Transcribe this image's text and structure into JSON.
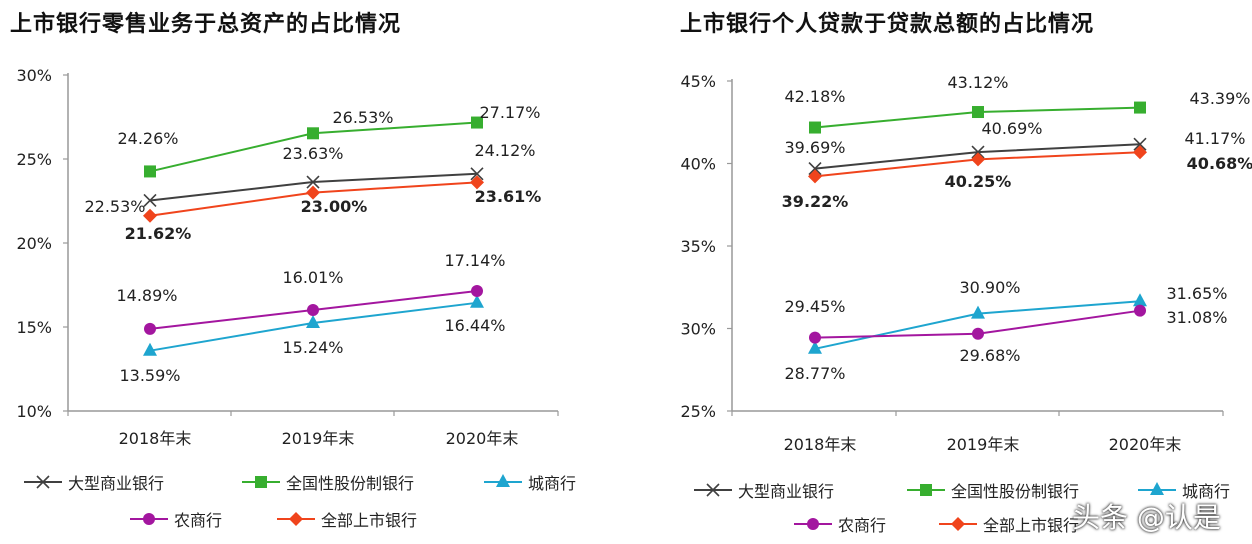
{
  "watermark": "头条 @认是",
  "chart_data": [
    {
      "type": "line",
      "title": "上市银行零售业务于总资产的占比情况",
      "categories": [
        "2018年末",
        "2019年末",
        "2020年末"
      ],
      "ylim": [
        10,
        30
      ],
      "yticks": [
        10,
        15,
        20,
        25,
        30
      ],
      "ytick_labels": [
        "10%",
        "15%",
        "20%",
        "25%",
        "30%"
      ],
      "xlabel": "",
      "ylabel": "",
      "legend_position": "bottom",
      "series": [
        {
          "name": "大型商业银行",
          "color": "#404040",
          "marker": "x",
          "values": [
            22.53,
            23.63,
            24.12
          ],
          "labels": [
            "22.53%",
            "23.63%",
            "24.12%"
          ],
          "bold": false
        },
        {
          "name": "全国性股份制银行",
          "color": "#37ae2f",
          "marker": "square",
          "values": [
            24.26,
            26.53,
            27.17
          ],
          "labels": [
            "24.26%",
            "26.53%",
            "27.17%"
          ],
          "bold": false
        },
        {
          "name": "城商行",
          "color": "#1ea5cf",
          "marker": "triangle",
          "values": [
            13.59,
            15.24,
            16.44
          ],
          "labels": [
            "13.59%",
            "15.24%",
            "16.44%"
          ],
          "bold": false
        },
        {
          "name": "农商行",
          "color": "#a3169f",
          "marker": "circle",
          "values": [
            14.89,
            16.01,
            17.14
          ],
          "labels": [
            "14.89%",
            "16.01%",
            "17.14%"
          ],
          "bold": false
        },
        {
          "name": "全部上市银行",
          "color": "#f0441c",
          "marker": "diamond",
          "values": [
            21.62,
            23.0,
            23.61
          ],
          "labels": [
            "21.62%",
            "23.00%",
            "23.61%"
          ],
          "bold": true
        }
      ]
    },
    {
      "type": "line",
      "title": "上市银行个人贷款于贷款总额的占比情况",
      "categories": [
        "2018年末",
        "2019年末",
        "2020年末"
      ],
      "ylim": [
        25,
        45
      ],
      "yticks": [
        25,
        30,
        35,
        40,
        45
      ],
      "ytick_labels": [
        "25%",
        "30%",
        "35%",
        "40%",
        "45%"
      ],
      "xlabel": "",
      "ylabel": "",
      "legend_position": "bottom",
      "series": [
        {
          "name": "大型商业银行",
          "color": "#404040",
          "marker": "x",
          "values": [
            39.69,
            40.69,
            41.17
          ],
          "labels": [
            "39.69%",
            "40.69%",
            "41.17%"
          ],
          "bold": false
        },
        {
          "name": "全国性股份制银行",
          "color": "#37ae2f",
          "marker": "square",
          "values": [
            42.18,
            43.12,
            43.39
          ],
          "labels": [
            "42.18%",
            "43.12%",
            "43.39%"
          ],
          "bold": false
        },
        {
          "name": "城商行",
          "color": "#1ea5cf",
          "marker": "triangle",
          "values": [
            28.77,
            30.9,
            31.65
          ],
          "labels": [
            "28.77%",
            "30.90%",
            "31.65%"
          ],
          "bold": false
        },
        {
          "name": "农商行",
          "color": "#a3169f",
          "marker": "circle",
          "values": [
            29.45,
            29.68,
            31.08
          ],
          "labels": [
            "29.45%",
            "29.68%",
            "31.08%"
          ],
          "bold": false
        },
        {
          "name": "全部上市银行",
          "color": "#f0441c",
          "marker": "diamond",
          "values": [
            39.22,
            40.25,
            40.68
          ],
          "labels": [
            "39.22%",
            "40.25%",
            "40.68%"
          ],
          "bold": true
        }
      ]
    }
  ]
}
